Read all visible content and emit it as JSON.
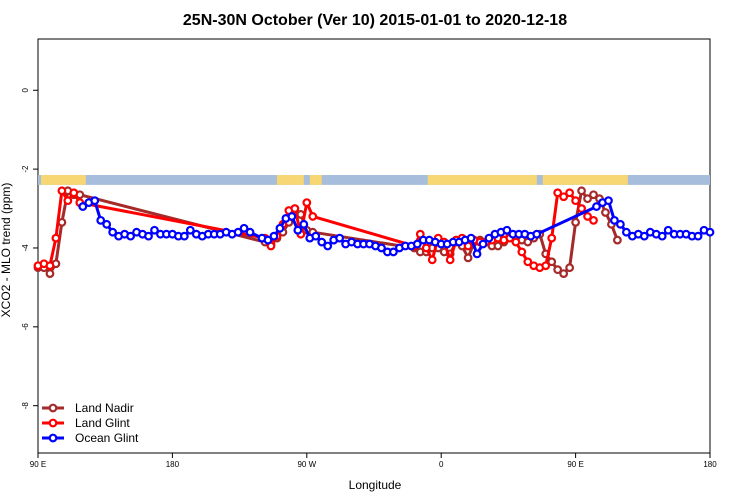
{
  "chart_data": {
    "type": "line",
    "title": "25N-30N October (Ver 10)   2015-01-01 to 2020-12-18",
    "xlabel": "Longitude",
    "ylabel": "XCO2 - MLO trend (ppm)",
    "xlim": [
      0,
      450
    ],
    "ylim": [
      -9.2,
      1.3
    ],
    "grid": false,
    "legend_position": "bottom-left",
    "x_ticks": [
      {
        "value": 0,
        "label": "90 E"
      },
      {
        "value": 90,
        "label": "180"
      },
      {
        "value": 180,
        "label": "90 W"
      },
      {
        "value": 270,
        "label": "0"
      },
      {
        "value": 360,
        "label": "90 E"
      },
      {
        "value": 450,
        "label": "180"
      }
    ],
    "y_ticks": [
      {
        "value": 0,
        "label": "0"
      },
      {
        "value": -2,
        "label": "-2"
      },
      {
        "value": -4,
        "label": "-4"
      },
      {
        "value": -6,
        "label": "-6"
      },
      {
        "value": -8,
        "label": "-8"
      }
    ],
    "land_mask": {
      "y_range": [
        -2.15,
        -2.4
      ],
      "ocean_color": "#a6bddb",
      "land_color": "#f7d774",
      "land_segments": [
        [
          2,
          32
        ],
        [
          160,
          178
        ],
        [
          182,
          190
        ],
        [
          261,
          334
        ],
        [
          338,
          395
        ]
      ]
    },
    "series": [
      {
        "name": "Land Nadir",
        "color": "#a52a2a",
        "x": [
          0,
          4,
          8,
          12,
          16,
          20,
          24,
          28,
          152,
          156,
          160,
          164,
          168,
          172,
          176,
          180,
          184,
          252,
          256,
          260,
          264,
          268,
          272,
          276,
          280,
          284,
          288,
          292,
          296,
          300,
          304,
          308,
          312,
          316,
          320,
          324,
          328,
          332,
          336,
          340,
          344,
          348,
          352,
          356,
          360,
          364,
          368,
          372,
          376,
          380,
          384,
          388
        ],
        "y": [
          -4.5,
          -4.5,
          -4.65,
          -4.4,
          -3.35,
          -2.55,
          -2.65,
          -2.65,
          -3.85,
          -3.9,
          -3.75,
          -3.6,
          -3.35,
          -3.05,
          -3.15,
          -3.55,
          -3.6,
          -4.0,
          -4.1,
          -4.1,
          -4.0,
          -4.0,
          -4.1,
          -4.15,
          -3.85,
          -3.95,
          -4.25,
          -3.85,
          -3.8,
          -3.85,
          -3.95,
          -3.95,
          -3.85,
          -3.7,
          -3.75,
          -3.8,
          -3.85,
          -3.75,
          -3.65,
          -4.15,
          -4.35,
          -4.55,
          -4.65,
          -4.5,
          -3.35,
          -2.55,
          -2.75,
          -2.65,
          -2.75,
          -3.1,
          -3.4,
          -3.8
        ]
      },
      {
        "name": "Land Glint",
        "color": "#ff0000",
        "x": [
          0,
          4,
          8,
          12,
          16,
          20,
          24,
          28,
          152,
          156,
          160,
          164,
          168,
          172,
          176,
          180,
          184,
          252,
          256,
          260,
          264,
          268,
          272,
          276,
          280,
          284,
          288,
          292,
          296,
          300,
          304,
          308,
          312,
          316,
          320,
          324,
          328,
          332,
          336,
          340,
          344,
          348,
          352,
          356,
          360,
          364,
          368,
          372
        ],
        "y": [
          -4.45,
          -4.4,
          -4.45,
          -3.75,
          -2.55,
          -2.8,
          -2.6,
          -2.85,
          -3.75,
          -3.95,
          -3.7,
          -3.4,
          -3.05,
          -3.0,
          -3.65,
          -2.85,
          -3.2,
          -3.95,
          -3.65,
          -4.0,
          -4.3,
          -3.75,
          -3.85,
          -4.3,
          -3.8,
          -3.75,
          -3.95,
          -3.8,
          -3.85,
          -3.85,
          -3.8,
          -3.75,
          -3.8,
          -3.75,
          -3.85,
          -4.1,
          -4.35,
          -4.45,
          -4.5,
          -4.45,
          -3.75,
          -2.6,
          -2.7,
          -2.6,
          -2.8,
          -3.0,
          -3.2,
          -3.3
        ]
      },
      {
        "name": "Ocean Glint",
        "color": "#0000ff",
        "x": [
          30,
          34,
          38,
          42,
          46,
          50,
          54,
          58,
          62,
          66,
          70,
          74,
          78,
          82,
          86,
          90,
          94,
          98,
          102,
          106,
          110,
          114,
          118,
          122,
          126,
          130,
          134,
          138,
          142,
          150,
          154,
          158,
          162,
          166,
          170,
          174,
          178,
          182,
          186,
          190,
          194,
          198,
          202,
          206,
          210,
          214,
          218,
          222,
          226,
          230,
          234,
          238,
          242,
          246,
          250,
          254,
          258,
          262,
          266,
          270,
          274,
          278,
          282,
          286,
          290,
          294,
          298,
          302,
          306,
          310,
          314,
          318,
          322,
          326,
          330,
          334,
          374,
          378,
          382,
          386,
          390,
          394,
          398,
          402,
          406,
          410,
          414,
          418,
          422,
          426,
          430,
          434,
          438,
          442,
          446,
          450
        ],
        "y": [
          -2.95,
          -2.85,
          -2.8,
          -3.3,
          -3.4,
          -3.6,
          -3.7,
          -3.65,
          -3.7,
          -3.6,
          -3.65,
          -3.7,
          -3.55,
          -3.65,
          -3.65,
          -3.65,
          -3.7,
          -3.7,
          -3.55,
          -3.65,
          -3.7,
          -3.65,
          -3.65,
          -3.65,
          -3.6,
          -3.65,
          -3.6,
          -3.5,
          -3.6,
          -3.75,
          -3.8,
          -3.7,
          -3.5,
          -3.25,
          -3.2,
          -3.55,
          -3.4,
          -3.75,
          -3.7,
          -3.85,
          -3.95,
          -3.8,
          -3.75,
          -3.9,
          -3.85,
          -3.9,
          -3.9,
          -3.9,
          -3.95,
          -4.0,
          -4.1,
          -4.1,
          -4.0,
          -3.95,
          -3.95,
          -3.9,
          -3.8,
          -3.8,
          -3.85,
          -3.9,
          -3.9,
          -3.85,
          -3.85,
          -3.8,
          -3.75,
          -4.15,
          -3.9,
          -3.75,
          -3.65,
          -3.6,
          -3.55,
          -3.65,
          -3.65,
          -3.65,
          -3.7,
          -3.65,
          -2.95,
          -2.85,
          -2.8,
          -3.3,
          -3.4,
          -3.6,
          -3.7,
          -3.65,
          -3.7,
          -3.6,
          -3.65,
          -3.7,
          -3.55,
          -3.65,
          -3.65,
          -3.65,
          -3.7,
          -3.7,
          -3.55,
          -3.6
        ]
      }
    ]
  }
}
